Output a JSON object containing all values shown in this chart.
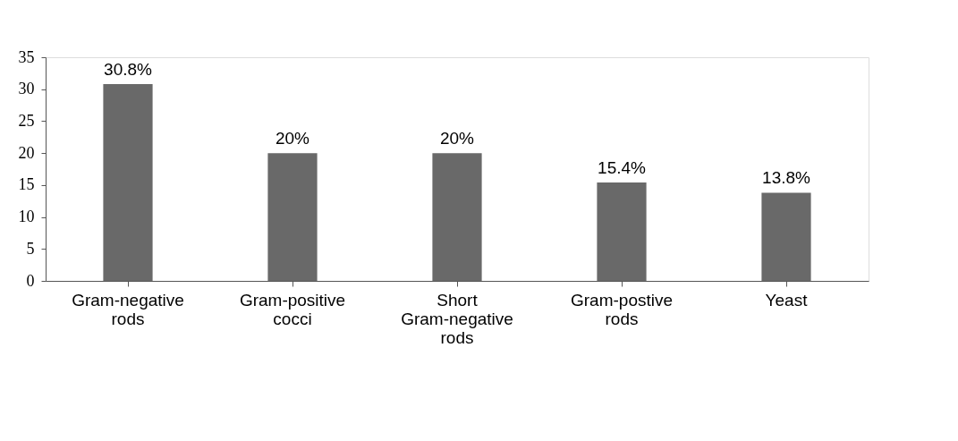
{
  "chart_data": {
    "type": "bar",
    "categories": [
      "Gram-negative rods",
      "Gram-positive cocci",
      "Short Gram-negative rods",
      "Gram-postive rods",
      "Yeast"
    ],
    "values": [
      30.8,
      20,
      20,
      15.4,
      13.8
    ],
    "value_labels": [
      "30.8%",
      "20%",
      "20%",
      "15.4%",
      "13.8%"
    ],
    "color": "#696969",
    "ylim": [
      0,
      35
    ],
    "yticks": [
      0,
      5,
      10,
      15,
      20,
      25,
      30,
      35
    ],
    "grid": false
  }
}
